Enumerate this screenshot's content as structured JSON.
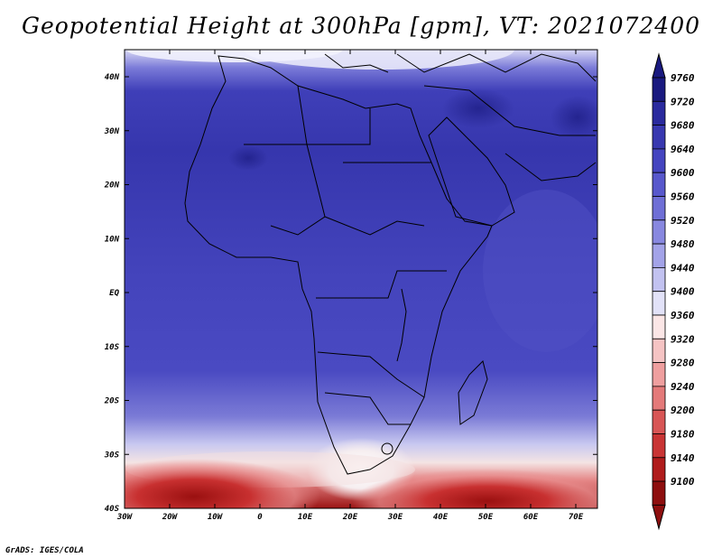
{
  "title": "Geopotential Height at 300hPa [gpm], VT: 2021072400",
  "credit": "GrADS: IGES/COLA",
  "lat_labels": [
    "40N",
    "30N",
    "20N",
    "10N",
    "EQ",
    "10S",
    "20S",
    "30S",
    "40S"
  ],
  "lon_labels": [
    "30W",
    "20W",
    "10W",
    "0",
    "10E",
    "20E",
    "30E",
    "40E",
    "50E",
    "60E",
    "70E"
  ],
  "colorbar": {
    "levels": [
      "9760",
      "9720",
      "9680",
      "9640",
      "9600",
      "9560",
      "9520",
      "9480",
      "9440",
      "9400",
      "9360",
      "9320",
      "9280",
      "9240",
      "9200",
      "9180",
      "9140",
      "9100"
    ],
    "colors": [
      "#1a1a80",
      "#2a2a9e",
      "#3838b0",
      "#4545c0",
      "#5858cc",
      "#6f6fd6",
      "#8888e0",
      "#a3a3e8",
      "#c2c2f0",
      "#e2e2f8",
      "#fbe6e6",
      "#f5c4c4",
      "#ef9f9f",
      "#e47a7a",
      "#d85656",
      "#c93535",
      "#b01c1c",
      "#8e0f0f"
    ],
    "top_color": "#1a1a80",
    "bottom_color": "#8e0f0f"
  }
}
